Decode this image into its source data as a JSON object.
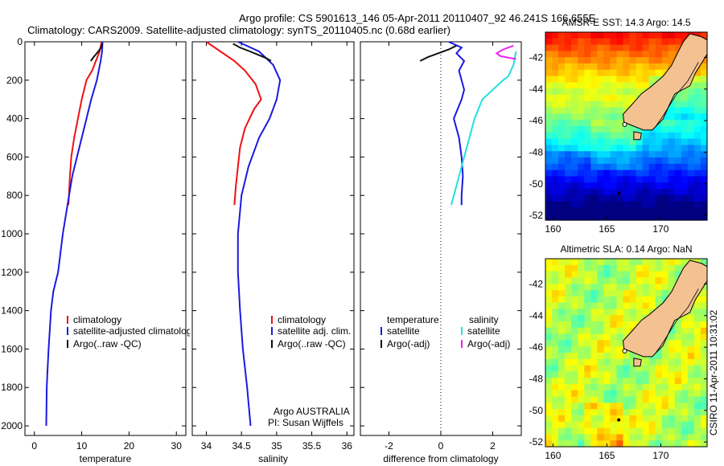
{
  "title_line1": "Argo profile: CS 5901613_146 05-Apr-2011 20110407_92 46.241S 166.655E",
  "title_line2": "Climatology: CARS2009. Satellite-adjusted climatology: synTS_20110405.nc (0.68d earlier)",
  "side_stamp": "CSIRO 11-Apr-2011 10:31:02",
  "colors": {
    "red": "#ee1111",
    "blue": "#1a1ae0",
    "black": "#111111",
    "cyan": "#22e0e0",
    "magenta": "#ee22ee",
    "land": "#f4c290"
  },
  "chart_data": [
    {
      "id": "temperature",
      "type": "line",
      "xlabel": "temperature",
      "ylabel": "",
      "xlim": [
        -2,
        32
      ],
      "ylim": [
        2050,
        0
      ],
      "xticks": [
        0,
        10,
        20,
        30
      ],
      "yticks": [
        0,
        200,
        400,
        600,
        800,
        1000,
        1200,
        1400,
        1600,
        1800,
        2000
      ],
      "legend": [
        "climatology",
        "satellite-adjusted climatology",
        "Argo(..raw -QC)"
      ],
      "legend_placement": "bottom-center",
      "series": [
        {
          "name": "climatology",
          "color": "red",
          "x": [
            14.2,
            13.8,
            13.0,
            12.2,
            11.0,
            10.0,
            9.2,
            8.4,
            7.8,
            7.5,
            7.2
          ],
          "y": [
            0,
            50,
            100,
            150,
            200,
            300,
            400,
            500,
            600,
            700,
            850
          ]
        },
        {
          "name": "satellite-adjusted climatology",
          "color": "blue",
          "x": [
            14.4,
            14.3,
            14.0,
            13.2,
            12.0,
            11.0,
            10.0,
            9.0,
            8.0,
            7.0,
            6.0,
            5.0,
            4.0,
            3.5,
            3.0,
            2.8,
            2.6,
            2.5
          ],
          "y": [
            0,
            50,
            100,
            200,
            300,
            400,
            500,
            600,
            700,
            850,
            1000,
            1200,
            1300,
            1400,
            1600,
            1700,
            1800,
            2000
          ]
        },
        {
          "name": "Argo(..raw -QC)",
          "color": "black",
          "x": [
            14.3,
            14.1,
            13.5,
            12.5,
            11.9
          ],
          "y": [
            10,
            30,
            50,
            80,
            100
          ]
        }
      ]
    },
    {
      "id": "salinity",
      "type": "line",
      "xlabel": "salinity",
      "ylabel": "",
      "xlim": [
        33.8,
        36.1
      ],
      "ylim": [
        2050,
        0
      ],
      "xticks": [
        34,
        34.5,
        35,
        35.5,
        36
      ],
      "legend": [
        "climatology",
        "satellite adj. clim.",
        "Argo(..raw -QC)"
      ],
      "legend_placement": "bottom-right",
      "annotation": [
        "Argo AUSTRALIA",
        "PI: Susan Wijffels"
      ],
      "series": [
        {
          "name": "climatology",
          "color": "red",
          "x": [
            34.0,
            34.2,
            34.4,
            34.55,
            34.7,
            34.78,
            34.68,
            34.55,
            34.48,
            34.45,
            34.42,
            34.4
          ],
          "y": [
            0,
            50,
            100,
            150,
            220,
            300,
            350,
            450,
            550,
            650,
            750,
            850
          ]
        },
        {
          "name": "satellite adj. clim.",
          "color": "blue",
          "x": [
            34.45,
            34.75,
            34.95,
            35.05,
            35.0,
            34.9,
            34.75,
            34.6,
            34.5,
            34.45,
            34.45,
            34.48,
            34.52,
            34.58,
            34.63
          ],
          "y": [
            0,
            50,
            120,
            200,
            300,
            400,
            500,
            650,
            800,
            1000,
            1200,
            1400,
            1600,
            1800,
            2000
          ]
        },
        {
          "name": "Argo(..raw -QC)",
          "color": "black",
          "x": [
            34.38,
            34.48,
            34.62,
            34.75,
            34.85,
            34.92
          ],
          "y": [
            10,
            30,
            50,
            70,
            85,
            100
          ]
        }
      ]
    },
    {
      "id": "difference",
      "type": "line",
      "xlabel": "difference from climatology",
      "ylabel": "",
      "xlim": [
        -3.1,
        3.1
      ],
      "ylim": [
        2050,
        0
      ],
      "xticks": [
        -2,
        0,
        2
      ],
      "legend": [
        "temperature",
        "satellite",
        "Argo(-adj)",
        "salinity",
        "satellite",
        "Argo(-adj)"
      ],
      "legend_placement": "bottom",
      "series": [
        {
          "name": "temperature satellite",
          "color": "blue",
          "x": [
            0.3,
            0.8,
            0.6,
            0.9,
            0.7,
            0.9,
            0.8,
            0.5,
            0.7,
            0.8,
            0.85,
            0.8,
            0.8
          ],
          "y": [
            0,
            30,
            60,
            100,
            150,
            250,
            300,
            400,
            500,
            600,
            700,
            800,
            850
          ]
        },
        {
          "name": "temperature Argo(-adj)",
          "color": "black",
          "x": [
            0.6,
            0.3,
            -0.1,
            -0.5,
            -0.8
          ],
          "y": [
            20,
            40,
            60,
            80,
            100
          ]
        },
        {
          "name": "salinity satellite",
          "color": "cyan",
          "x": [
            2.9,
            2.8,
            2.6,
            2.4,
            2.0,
            1.6,
            1.3,
            1.1,
            0.9,
            0.6,
            0.4
          ],
          "y": [
            50,
            120,
            180,
            200,
            250,
            300,
            400,
            500,
            600,
            750,
            850
          ]
        },
        {
          "name": "salinity Argo(-adj)",
          "color": "magenta",
          "x": [
            2.8,
            2.4,
            2.15,
            2.3,
            2.9
          ],
          "y": [
            20,
            40,
            60,
            75,
            90
          ]
        }
      ]
    },
    {
      "id": "sst_map",
      "type": "heatmap",
      "title": "AMSR-E SST: 14.3 Argo: 14.5",
      "xlim": [
        159.3,
        174.3
      ],
      "ylim": [
        -52.3,
        -40.4
      ],
      "xticks": [
        160,
        165,
        170
      ],
      "yticks": [
        -42,
        -44,
        -46,
        -48,
        -50,
        -52
      ],
      "palette": "warm-north-cold-south"
    },
    {
      "id": "sla_map",
      "type": "heatmap",
      "title": "Altimetric SLA: 0.14 Argo: NaN",
      "xlim": [
        159.3,
        174.3
      ],
      "ylim": [
        -52.3,
        -40.4
      ],
      "xticks": [
        160,
        165,
        170
      ],
      "yticks": [
        -42,
        -44,
        -46,
        -48,
        -50,
        -52
      ],
      "palette": "mostly-green"
    }
  ]
}
